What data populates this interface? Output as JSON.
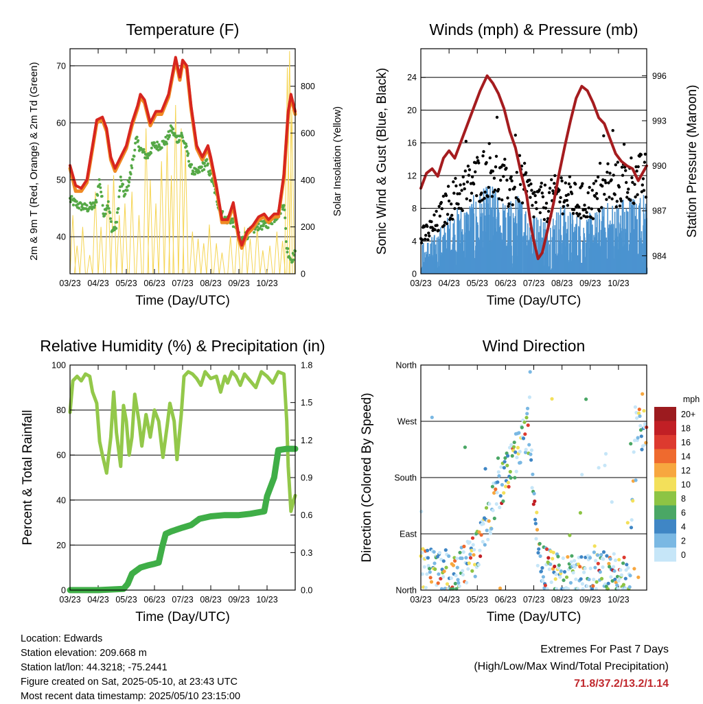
{
  "months": [
    "03/23",
    "04/23",
    "05/23",
    "06/23",
    "07/23",
    "08/23",
    "09/23",
    "10/23"
  ],
  "xlabel": "Time (Day/UTC)",
  "temperature": {
    "title": "Temperature (F)",
    "ylabel_left": "2m & 9m T (Red, Orange) & 2m Td (Green)",
    "ylabel_right": "Solar Insolation (Yellow)",
    "yticks_left": [
      "40",
      "50",
      "60",
      "70"
    ],
    "yticks_right": [
      "0",
      "200",
      "400",
      "600",
      "800"
    ],
    "ylim": [
      33.5,
      73
    ],
    "ylim_right": [
      0,
      960
    ],
    "temp_2m": [
      [
        0,
        52.5
      ],
      [
        0.2,
        49
      ],
      [
        0.4,
        48.5
      ],
      [
        0.6,
        50
      ],
      [
        0.8,
        56
      ],
      [
        0.95,
        60.5
      ],
      [
        1.15,
        61
      ],
      [
        1.3,
        59
      ],
      [
        1.45,
        54
      ],
      [
        1.6,
        52
      ],
      [
        1.8,
        54
      ],
      [
        2.0,
        56
      ],
      [
        2.2,
        60
      ],
      [
        2.4,
        63
      ],
      [
        2.5,
        65
      ],
      [
        2.65,
        64
      ],
      [
        2.85,
        60
      ],
      [
        3.05,
        62
      ],
      [
        3.25,
        62
      ],
      [
        3.5,
        65
      ],
      [
        3.75,
        71.5
      ],
      [
        3.9,
        68
      ],
      [
        4.0,
        71
      ],
      [
        4.15,
        70
      ],
      [
        4.3,
        63
      ],
      [
        4.5,
        56
      ],
      [
        4.7,
        54
      ],
      [
        4.9,
        56
      ],
      [
        5.0,
        54
      ],
      [
        5.2,
        49
      ],
      [
        5.4,
        43
      ],
      [
        5.6,
        43
      ],
      [
        5.8,
        46
      ],
      [
        6.0,
        40
      ],
      [
        6.1,
        38.5
      ],
      [
        6.3,
        41
      ],
      [
        6.5,
        42
      ],
      [
        6.7,
        43.5
      ],
      [
        6.9,
        44
      ],
      [
        7.05,
        43
      ],
      [
        7.25,
        44
      ],
      [
        7.4,
        44
      ],
      [
        7.6,
        51
      ],
      [
        7.75,
        62
      ],
      [
        7.85,
        65
      ],
      [
        8.0,
        62
      ]
    ],
    "temp_9m": [
      [
        0,
        52
      ],
      [
        0.2,
        48
      ],
      [
        0.4,
        48
      ],
      [
        0.6,
        49.5
      ],
      [
        0.8,
        55.5
      ],
      [
        0.95,
        60
      ],
      [
        1.15,
        60.5
      ],
      [
        1.3,
        58.5
      ],
      [
        1.45,
        53.5
      ],
      [
        1.6,
        51.5
      ],
      [
        1.8,
        53.5
      ],
      [
        2.0,
        55.5
      ],
      [
        2.2,
        59.5
      ],
      [
        2.4,
        62.5
      ],
      [
        2.5,
        64.5
      ],
      [
        2.65,
        63.5
      ],
      [
        2.85,
        59.5
      ],
      [
        3.05,
        61.5
      ],
      [
        3.25,
        61.5
      ],
      [
        3.5,
        64.5
      ],
      [
        3.75,
        71
      ],
      [
        3.9,
        67.5
      ],
      [
        4.0,
        70.5
      ],
      [
        4.15,
        69.5
      ],
      [
        4.3,
        62.5
      ],
      [
        4.5,
        55.5
      ],
      [
        4.7,
        53.5
      ],
      [
        4.9,
        55.5
      ],
      [
        5.0,
        53.5
      ],
      [
        5.2,
        48.5
      ],
      [
        5.4,
        42.5
      ],
      [
        5.6,
        42.5
      ],
      [
        5.8,
        45.5
      ],
      [
        6.0,
        39.5
      ],
      [
        6.1,
        38
      ],
      [
        6.3,
        40.5
      ],
      [
        6.5,
        41.5
      ],
      [
        6.7,
        43
      ],
      [
        6.9,
        43.5
      ],
      [
        7.05,
        42.5
      ],
      [
        7.25,
        43.5
      ],
      [
        7.4,
        43.5
      ],
      [
        7.6,
        50.5
      ],
      [
        7.75,
        61.5
      ],
      [
        7.85,
        64.5
      ],
      [
        8.0,
        61.5
      ]
    ],
    "dewpoint_2m": [
      [
        0,
        46.5
      ],
      [
        0.3,
        45.5
      ],
      [
        0.6,
        45
      ],
      [
        0.9,
        45.5
      ],
      [
        1.05,
        50
      ],
      [
        1.2,
        44
      ],
      [
        1.35,
        46
      ],
      [
        1.5,
        41
      ],
      [
        1.65,
        42
      ],
      [
        1.8,
        50
      ],
      [
        1.95,
        47
      ],
      [
        2.15,
        51
      ],
      [
        2.35,
        57
      ],
      [
        2.55,
        55
      ],
      [
        2.75,
        54
      ],
      [
        2.95,
        56
      ],
      [
        3.2,
        56
      ],
      [
        3.45,
        57
      ],
      [
        3.6,
        59
      ],
      [
        3.8,
        57
      ],
      [
        3.95,
        58
      ],
      [
        4.1,
        56
      ],
      [
        4.3,
        52
      ],
      [
        4.5,
        51
      ],
      [
        4.65,
        52
      ],
      [
        4.85,
        53
      ],
      [
        5.1,
        49
      ],
      [
        5.3,
        45
      ],
      [
        5.5,
        43
      ],
      [
        5.7,
        43
      ],
      [
        5.9,
        42
      ],
      [
        6.05,
        39
      ],
      [
        6.2,
        40
      ],
      [
        6.45,
        41
      ],
      [
        6.7,
        42
      ],
      [
        6.95,
        42
      ],
      [
        7.2,
        43
      ],
      [
        7.4,
        44
      ],
      [
        7.6,
        46
      ],
      [
        7.7,
        38
      ],
      [
        7.85,
        36
      ],
      [
        8.0,
        37
      ]
    ],
    "solar_peaks": [
      [
        0.1,
        250
      ],
      [
        0.25,
        120
      ],
      [
        0.45,
        200
      ],
      [
        0.7,
        80
      ],
      [
        0.9,
        350
      ],
      [
        1.1,
        200
      ],
      [
        1.35,
        380
      ],
      [
        1.55,
        420
      ],
      [
        1.75,
        250
      ],
      [
        1.95,
        300
      ],
      [
        2.2,
        350
      ],
      [
        2.45,
        250
      ],
      [
        2.7,
        620
      ],
      [
        2.85,
        400
      ],
      [
        3.05,
        300
      ],
      [
        3.25,
        480
      ],
      [
        3.45,
        560
      ],
      [
        3.6,
        420
      ],
      [
        3.75,
        720
      ],
      [
        3.95,
        620
      ],
      [
        4.1,
        530
      ],
      [
        4.35,
        180
      ],
      [
        4.55,
        150
      ],
      [
        4.75,
        130
      ],
      [
        4.95,
        210
      ],
      [
        5.2,
        130
      ],
      [
        5.4,
        90
      ],
      [
        5.7,
        160
      ],
      [
        5.95,
        180
      ],
      [
        6.2,
        200
      ],
      [
        6.4,
        150
      ],
      [
        6.65,
        200
      ],
      [
        6.85,
        100
      ],
      [
        7.1,
        120
      ],
      [
        7.35,
        180
      ],
      [
        7.55,
        140
      ],
      [
        7.72,
        880
      ],
      [
        7.8,
        950
      ],
      [
        7.88,
        700
      ]
    ]
  },
  "winds": {
    "title": "Winds (mph) & Pressure (mb)",
    "ylabel_left": "Sonic Wind & Gust (Blue, Black)",
    "ylabel_right": "Station Pressure (Maroon)",
    "yticks_left": [
      "0",
      "4",
      "8",
      "12",
      "16",
      "20",
      "24"
    ],
    "yticks_right": [
      "984",
      "987",
      "990",
      "993",
      "996"
    ],
    "ylim": [
      0,
      27.5
    ],
    "ylim_right": [
      982.8,
      997.8
    ],
    "pressure": [
      [
        0,
        988.5
      ],
      [
        0.2,
        989.5
      ],
      [
        0.4,
        989.8
      ],
      [
        0.6,
        989.3
      ],
      [
        0.8,
        990.5
      ],
      [
        1.0,
        991
      ],
      [
        1.2,
        990.5
      ],
      [
        1.5,
        992
      ],
      [
        1.8,
        993.5
      ],
      [
        2.1,
        995
      ],
      [
        2.35,
        996
      ],
      [
        2.55,
        995.5
      ],
      [
        2.75,
        994.8
      ],
      [
        2.95,
        993.8
      ],
      [
        3.15,
        992.3
      ],
      [
        3.35,
        991.2
      ],
      [
        3.55,
        989.5
      ],
      [
        3.75,
        988
      ],
      [
        3.9,
        986
      ],
      [
        4.0,
        985
      ],
      [
        4.15,
        983.8
      ],
      [
        4.3,
        984.2
      ],
      [
        4.5,
        985.8
      ],
      [
        4.7,
        987.5
      ],
      [
        4.9,
        989.5
      ],
      [
        5.1,
        991.3
      ],
      [
        5.3,
        993
      ],
      [
        5.5,
        994.5
      ],
      [
        5.7,
        995.3
      ],
      [
        5.9,
        995
      ],
      [
        6.1,
        994.2
      ],
      [
        6.3,
        993.2
      ],
      [
        6.5,
        992.8
      ],
      [
        6.7,
        991.8
      ],
      [
        6.9,
        990.8
      ],
      [
        7.1,
        990.3
      ],
      [
        7.3,
        990
      ],
      [
        7.5,
        989.8
      ],
      [
        7.7,
        989
      ],
      [
        7.85,
        989.5
      ],
      [
        8.0,
        990
      ]
    ]
  },
  "humidity": {
    "title": "Relative Humidity (%) & Precipitation (in)",
    "ylabel_left": "Percent & Total Rainfall",
    "yticks_left": [
      "0",
      "20",
      "40",
      "60",
      "80",
      "100"
    ],
    "yticks_right": [
      "0.0",
      "0.3",
      "0.6",
      "0.9",
      "1.2",
      "1.5",
      "1.8"
    ],
    "ylim": [
      0,
      100
    ],
    "ylim_right": [
      0,
      1.8
    ],
    "rh": [
      [
        0,
        79
      ],
      [
        0.1,
        93
      ],
      [
        0.25,
        95
      ],
      [
        0.4,
        93
      ],
      [
        0.55,
        96
      ],
      [
        0.7,
        95
      ],
      [
        0.8,
        88
      ],
      [
        0.95,
        83
      ],
      [
        1.05,
        66
      ],
      [
        1.15,
        60
      ],
      [
        1.3,
        52
      ],
      [
        1.45,
        68
      ],
      [
        1.55,
        88
      ],
      [
        1.65,
        70
      ],
      [
        1.8,
        55
      ],
      [
        1.9,
        82
      ],
      [
        2.0,
        75
      ],
      [
        2.1,
        60
      ],
      [
        2.2,
        68
      ],
      [
        2.3,
        87
      ],
      [
        2.45,
        75
      ],
      [
        2.55,
        64
      ],
      [
        2.7,
        78
      ],
      [
        2.85,
        68
      ],
      [
        3.0,
        80
      ],
      [
        3.15,
        75
      ],
      [
        3.3,
        59
      ],
      [
        3.45,
        73
      ],
      [
        3.55,
        83
      ],
      [
        3.7,
        75
      ],
      [
        3.8,
        58
      ],
      [
        3.95,
        78
      ],
      [
        4.05,
        95
      ],
      [
        4.2,
        97
      ],
      [
        4.35,
        96
      ],
      [
        4.5,
        94
      ],
      [
        4.65,
        91
      ],
      [
        4.8,
        97
      ],
      [
        5.0,
        94
      ],
      [
        5.2,
        95
      ],
      [
        5.35,
        88
      ],
      [
        5.5,
        95
      ],
      [
        5.6,
        92
      ],
      [
        5.75,
        97
      ],
      [
        5.9,
        95
      ],
      [
        6.05,
        91
      ],
      [
        6.2,
        96
      ],
      [
        6.4,
        93
      ],
      [
        6.6,
        90
      ],
      [
        6.8,
        97
      ],
      [
        7.0,
        95
      ],
      [
        7.2,
        92
      ],
      [
        7.4,
        97
      ],
      [
        7.6,
        96
      ],
      [
        7.7,
        75
      ],
      [
        7.75,
        55
      ],
      [
        7.85,
        35
      ],
      [
        7.95,
        40
      ],
      [
        8.0,
        42
      ]
    ],
    "precip": [
      [
        0,
        0
      ],
      [
        1.0,
        0
      ],
      [
        1.9,
        0.01
      ],
      [
        2.05,
        0.05
      ],
      [
        2.2,
        0.13
      ],
      [
        2.5,
        0.18
      ],
      [
        2.8,
        0.2
      ],
      [
        3.0,
        0.21
      ],
      [
        3.15,
        0.22
      ],
      [
        3.28,
        0.35
      ],
      [
        3.4,
        0.45
      ],
      [
        3.6,
        0.47
      ],
      [
        4.0,
        0.5
      ],
      [
        4.3,
        0.52
      ],
      [
        4.6,
        0.57
      ],
      [
        5.0,
        0.59
      ],
      [
        5.5,
        0.6
      ],
      [
        6.0,
        0.6
      ],
      [
        6.4,
        0.61
      ],
      [
        6.9,
        0.63
      ],
      [
        7.0,
        0.75
      ],
      [
        7.25,
        0.9
      ],
      [
        7.4,
        1.12
      ],
      [
        7.7,
        1.13
      ],
      [
        8.0,
        1.13
      ]
    ]
  },
  "wind_direction": {
    "title": "Wind Direction",
    "ylabel": "Direction (Colored By Speed)",
    "yticks": [
      "North",
      "East",
      "South",
      "West",
      "North"
    ],
    "legend_title": "mph",
    "legend_labels": [
      "20+",
      "18",
      "16",
      "14",
      "12",
      "10",
      "8",
      "6",
      "4",
      "2",
      "0"
    ],
    "legend_colors": [
      "#9c1b1f",
      "#c11f25",
      "#dd3a2f",
      "#ef6a2e",
      "#f7a73f",
      "#f3e05a",
      "#8dc444",
      "#4aa765",
      "#3f86c5",
      "#7ab8e3",
      "#c6e6f8"
    ]
  },
  "info": {
    "location": "Location: Edwards",
    "elevation": "Station elevation: 209.668 m",
    "latlon": "Station lat/lon: 44.3218; -75.2441",
    "created": "Figure created on Sat, 2025-05-10, at 23:43 UTC",
    "recent": "Most recent data timestamp: 2025/05/10 23:15:00"
  },
  "extremes": {
    "line1": "Extremes For Past 7 Days",
    "line2": "(High/Low/Max Wind/Total Precipitation)",
    "values": "71.8/37.2/13.2/1.14"
  }
}
